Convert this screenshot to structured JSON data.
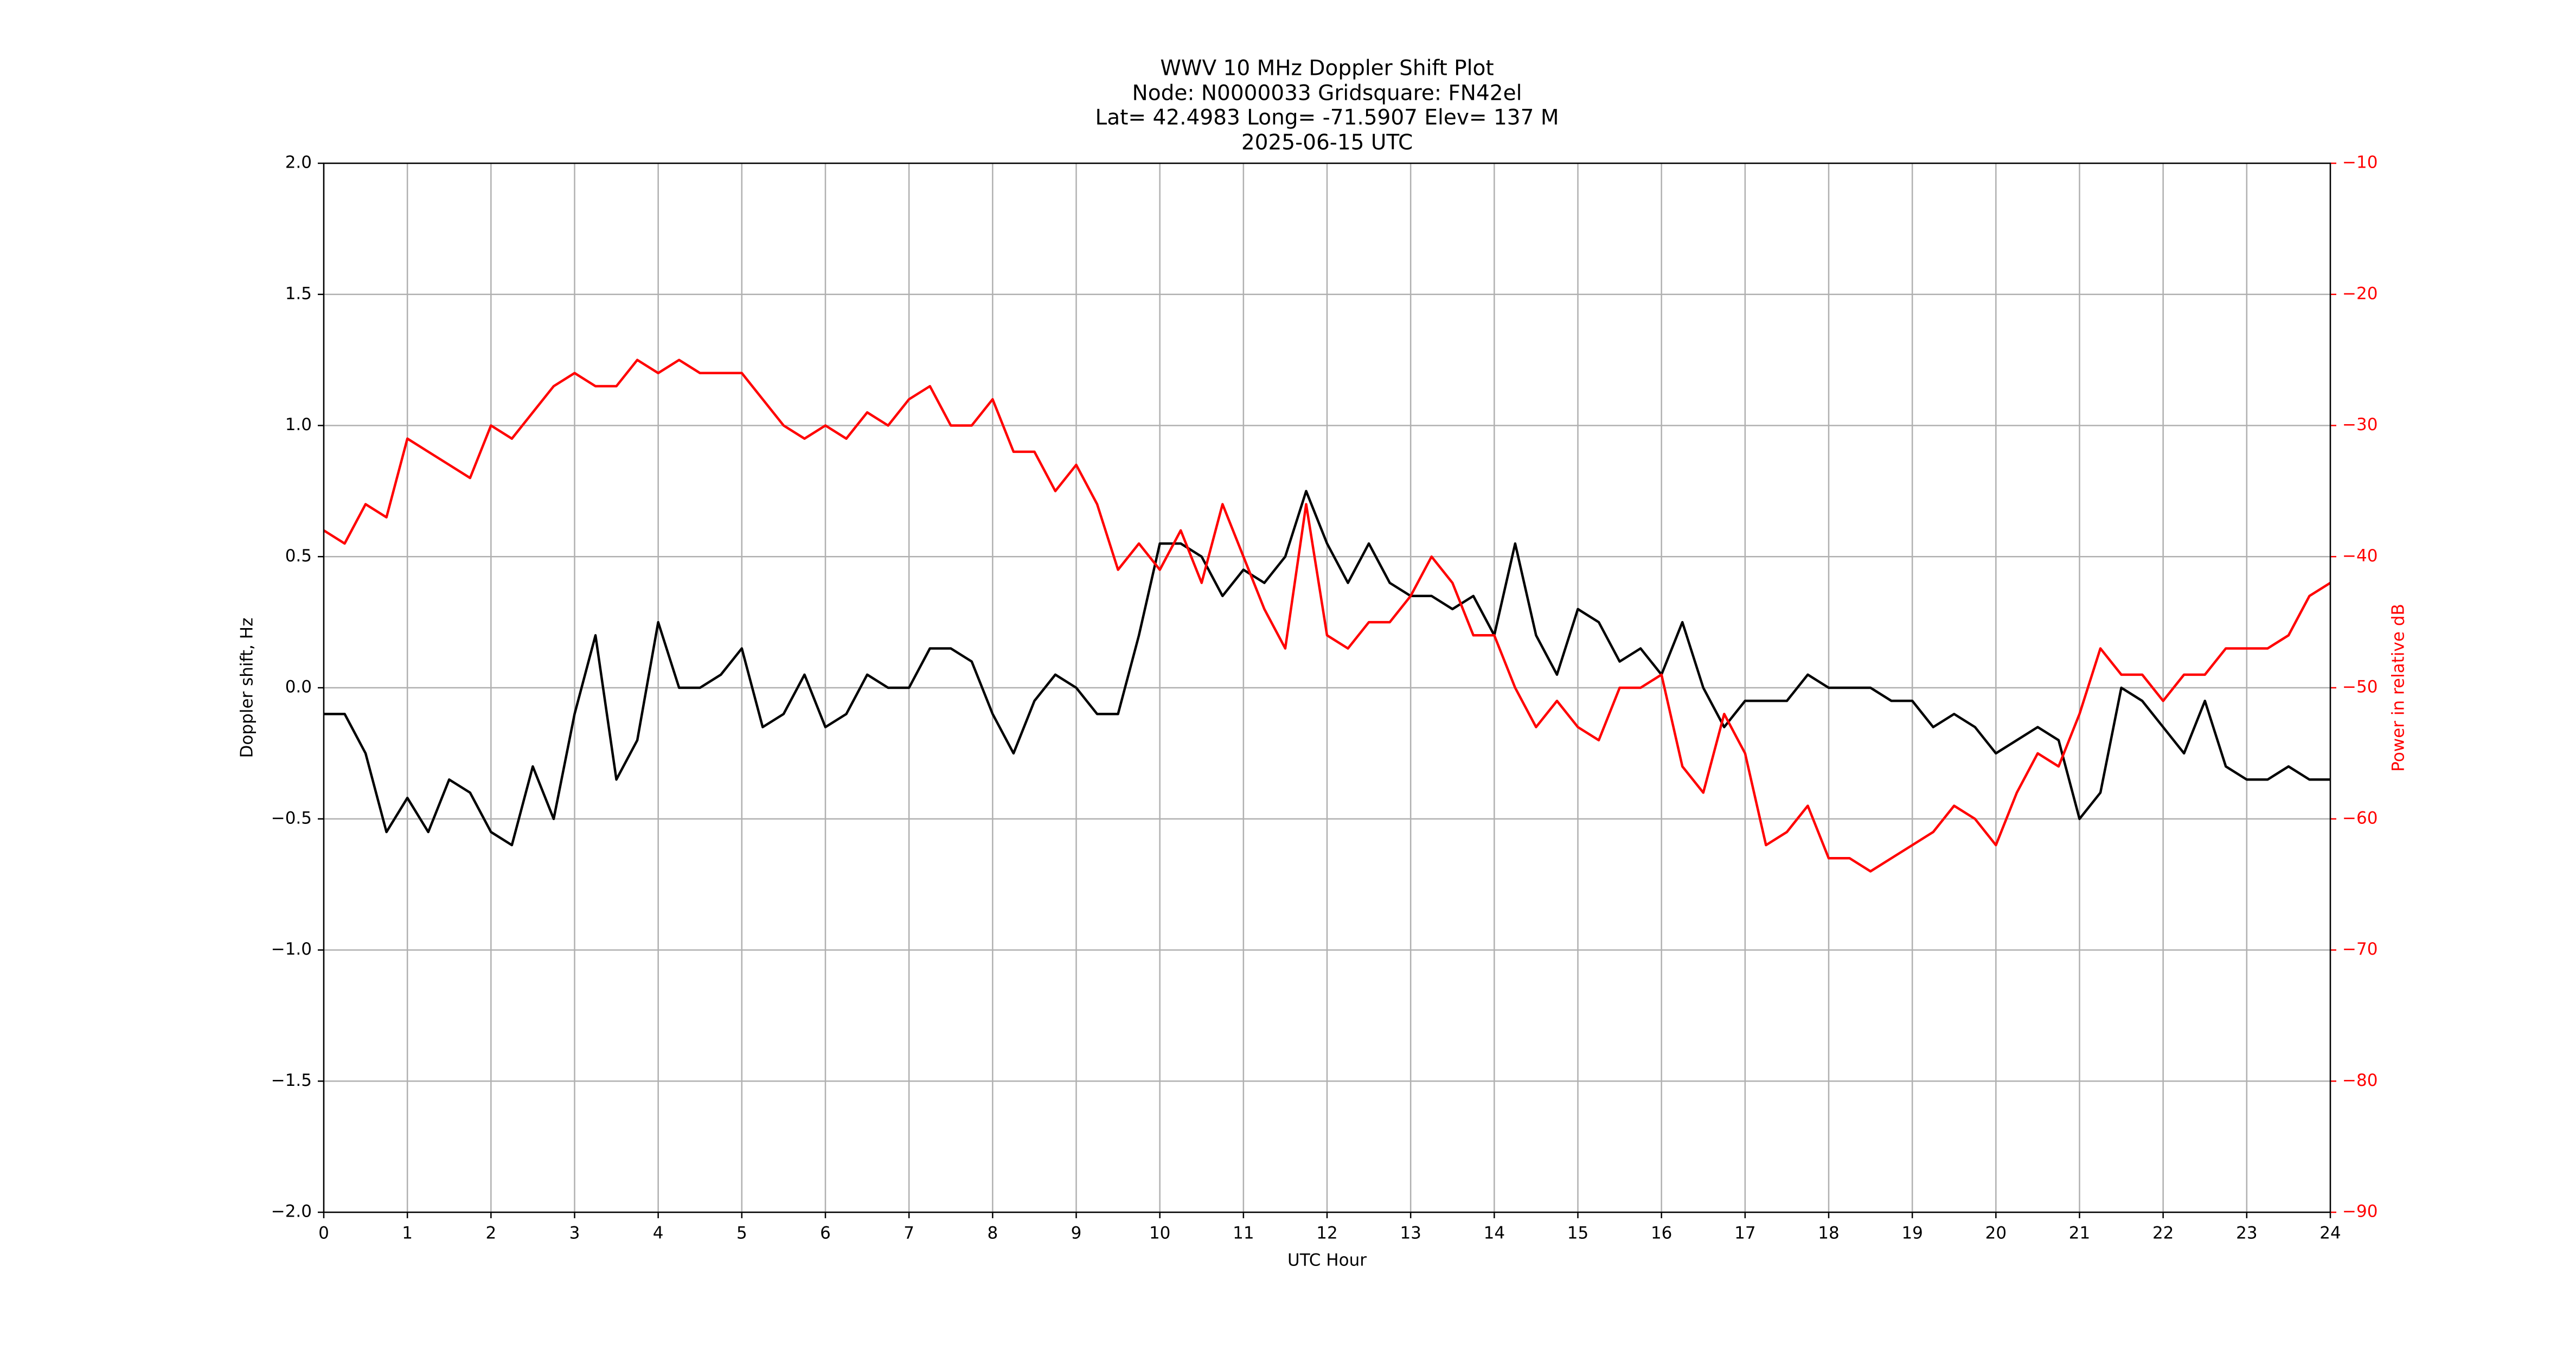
{
  "chart_data": {
    "type": "line",
    "title": [
      "WWV 10 MHz Doppler Shift Plot",
      "Node:  N0000033     Gridsquare:  FN42el",
      "Lat= 42.4983    Long= -71.5907    Elev= 137 M",
      "2025-06-15  UTC"
    ],
    "xlabel": "UTC Hour",
    "ylabel": "Doppler shift, Hz",
    "y2label": "Power in relative dB",
    "grid": true,
    "xlim": [
      0,
      24
    ],
    "xticks": [
      0,
      1,
      2,
      3,
      4,
      5,
      6,
      7,
      8,
      9,
      10,
      11,
      12,
      13,
      14,
      15,
      16,
      17,
      18,
      19,
      20,
      21,
      22,
      23,
      24
    ],
    "ylim": [
      -2,
      2
    ],
    "yticks": [
      {
        "value": -2,
        "label": "−2.0"
      },
      {
        "value": -1.5,
        "label": "−1.5"
      },
      {
        "value": -1,
        "label": "−1.0"
      },
      {
        "value": -0.5,
        "label": "−0.5"
      },
      {
        "value": 0,
        "label": "0.0"
      },
      {
        "value": 0.5,
        "label": "0.5"
      },
      {
        "value": 1,
        "label": "1.0"
      },
      {
        "value": 1.5,
        "label": "1.5"
      },
      {
        "value": 2,
        "label": "2.0"
      }
    ],
    "y2lim": [
      -90,
      -10
    ],
    "y2ticks": [
      {
        "value": -90,
        "label": "−90"
      },
      {
        "value": -80,
        "label": "−80"
      },
      {
        "value": -70,
        "label": "−70"
      },
      {
        "value": -60,
        "label": "−60"
      },
      {
        "value": -50,
        "label": "−50"
      },
      {
        "value": -40,
        "label": "−40"
      },
      {
        "value": -30,
        "label": "−30"
      },
      {
        "value": -20,
        "label": "−20"
      },
      {
        "value": -10,
        "label": "−10"
      }
    ],
    "y2color": "#ff0000",
    "x": [
      0,
      0.25,
      0.5,
      0.75,
      1,
      1.25,
      1.5,
      1.75,
      2,
      2.25,
      2.5,
      2.75,
      3,
      3.25,
      3.5,
      3.75,
      4,
      4.25,
      4.5,
      4.75,
      5,
      5.25,
      5.5,
      5.75,
      6,
      6.25,
      6.5,
      6.75,
      7,
      7.25,
      7.5,
      7.75,
      8,
      8.25,
      8.5,
      8.75,
      9,
      9.25,
      9.5,
      9.75,
      10,
      10.25,
      10.5,
      10.75,
      11,
      11.25,
      11.5,
      11.75,
      12,
      12.25,
      12.5,
      12.75,
      13,
      13.25,
      13.5,
      13.75,
      14,
      14.25,
      14.5,
      14.75,
      15,
      15.25,
      15.5,
      15.75,
      16,
      16.25,
      16.5,
      16.75,
      17,
      17.25,
      17.5,
      17.75,
      18,
      18.25,
      18.5,
      18.75,
      19,
      19.25,
      19.5,
      19.75,
      20,
      20.25,
      20.5,
      20.75,
      21,
      21.25,
      21.5,
      21.75,
      22,
      22.25,
      22.5,
      22.75,
      23,
      23.25,
      23.5,
      23.75,
      24
    ],
    "series": [
      {
        "color": "#000000",
        "values": [
          -0.1,
          -0.1,
          -0.25,
          -0.55,
          -0.42,
          -0.55,
          -0.35,
          -0.4,
          -0.55,
          -0.6,
          -0.3,
          -0.5,
          -0.1,
          0.2,
          -0.35,
          -0.2,
          0.25,
          0,
          0,
          0.05,
          0.15,
          -0.15,
          -0.1,
          0.05,
          -0.15,
          -0.1,
          0.05,
          0,
          0,
          0.15,
          0.15,
          0.1,
          -0.1,
          -0.25,
          -0.05,
          0.05,
          0,
          -0.1,
          -0.1,
          0.2,
          0.55,
          0.55,
          0.5,
          0.35,
          0.45,
          0.4,
          0.5,
          0.75,
          0.55,
          0.4,
          0.55,
          0.4,
          0.35,
          0.35,
          0.3,
          0.35,
          0.2,
          0.55,
          0.2,
          0.05,
          0.3,
          0.25,
          0.1,
          0.15,
          0.05,
          0.25,
          0,
          -0.15,
          -0.05,
          -0.05,
          -0.05,
          0.05,
          0,
          0,
          0,
          -0.05,
          -0.05,
          -0.15,
          -0.1,
          -0.15,
          -0.25,
          -0.2,
          -0.15,
          -0.2,
          -0.5,
          -0.4,
          0,
          -0.05,
          -0.15,
          -0.25,
          -0.05,
          -0.3,
          -0.35,
          -0.35,
          -0.3,
          -0.35,
          -0.35
        ]
      },
      {
        "color": "#ff0000",
        "axis": "y2",
        "values": [
          -38,
          -39,
          -36,
          -37,
          -31,
          -32,
          -33,
          -34,
          -30,
          -31,
          -29,
          -27,
          -26,
          -27,
          -27,
          -25,
          -26,
          -25,
          -26,
          -26,
          -26,
          -28,
          -30,
          -31,
          -30,
          -31,
          -29,
          -30,
          -28,
          -27,
          -30,
          -30,
          -28,
          -32,
          -32,
          -35,
          -33,
          -36,
          -41,
          -39,
          -41,
          -38,
          -42,
          -36,
          -40,
          -44,
          -47,
          -36,
          -46,
          -47,
          -45,
          -45,
          -43,
          -40,
          -42,
          -46,
          -46,
          -50,
          -53,
          -51,
          -53,
          -54,
          -50,
          -50,
          -49,
          -56,
          -58,
          -52,
          -55,
          -62,
          -61,
          -59,
          -63,
          -63,
          -64,
          -63,
          -62,
          -61,
          -59,
          -60,
          -62,
          -58,
          -55,
          -56,
          -52,
          -47,
          -49,
          -49,
          -51,
          -49,
          -49,
          -47,
          -47,
          -47,
          -46,
          -43,
          -42
        ]
      }
    ]
  }
}
